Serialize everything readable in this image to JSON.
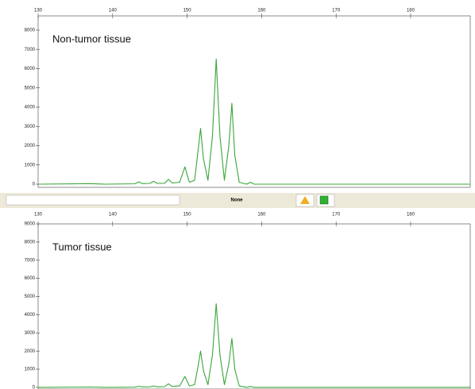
{
  "chart_data": [
    {
      "type": "line",
      "title": "Non-tumor tissue",
      "color": "#3aa63a",
      "x": [
        130,
        137,
        139,
        143,
        143.5,
        144,
        145,
        145.5,
        146,
        147,
        147.5,
        148,
        149,
        149.7,
        150.3,
        151,
        151.4,
        151.8,
        152.2,
        152.8,
        153.4,
        153.9,
        154.4,
        155.0,
        155.6,
        156.0,
        156.4,
        157.0,
        158,
        158.5,
        159,
        188
      ],
      "values": [
        0,
        30,
        0,
        20,
        120,
        30,
        40,
        150,
        40,
        50,
        250,
        60,
        100,
        900,
        100,
        200,
        1500,
        2900,
        1300,
        200,
        2500,
        6500,
        2500,
        200,
        2000,
        4200,
        1500,
        100,
        0,
        100,
        0,
        0
      ],
      "xlim": [
        130,
        188
      ],
      "xticks": [
        130,
        140,
        150,
        160,
        170,
        180
      ],
      "ylim": [
        -165,
        8740
      ],
      "yticks": [
        0,
        1000,
        2000,
        3000,
        4000,
        5000,
        6000,
        7000,
        8000
      ]
    },
    {
      "type": "line",
      "title": "Tumor tissue",
      "color": "#3aa63a",
      "x": [
        130,
        137,
        139,
        143,
        143.5,
        144,
        145,
        145.5,
        146,
        147,
        147.5,
        148,
        149,
        149.7,
        150.3,
        151,
        151.4,
        151.8,
        152.2,
        152.8,
        153.4,
        153.9,
        154.4,
        155.0,
        155.6,
        156.0,
        156.4,
        157.0,
        158,
        158.5,
        159,
        188
      ],
      "values": [
        0,
        20,
        0,
        10,
        60,
        20,
        30,
        80,
        30,
        40,
        200,
        50,
        80,
        600,
        80,
        150,
        1000,
        2000,
        900,
        150,
        1800,
        4600,
        1800,
        150,
        1300,
        2700,
        1000,
        80,
        0,
        50,
        0,
        0
      ],
      "xlim": [
        130,
        188
      ],
      "xticks": [
        130,
        140,
        150,
        160,
        170,
        180
      ],
      "ylim": [
        -90,
        9000
      ],
      "yticks": [
        0,
        1000,
        2000,
        3000,
        4000,
        5000,
        6000,
        7000,
        8000,
        9000
      ]
    }
  ],
  "toolbar": {
    "label": "None"
  }
}
